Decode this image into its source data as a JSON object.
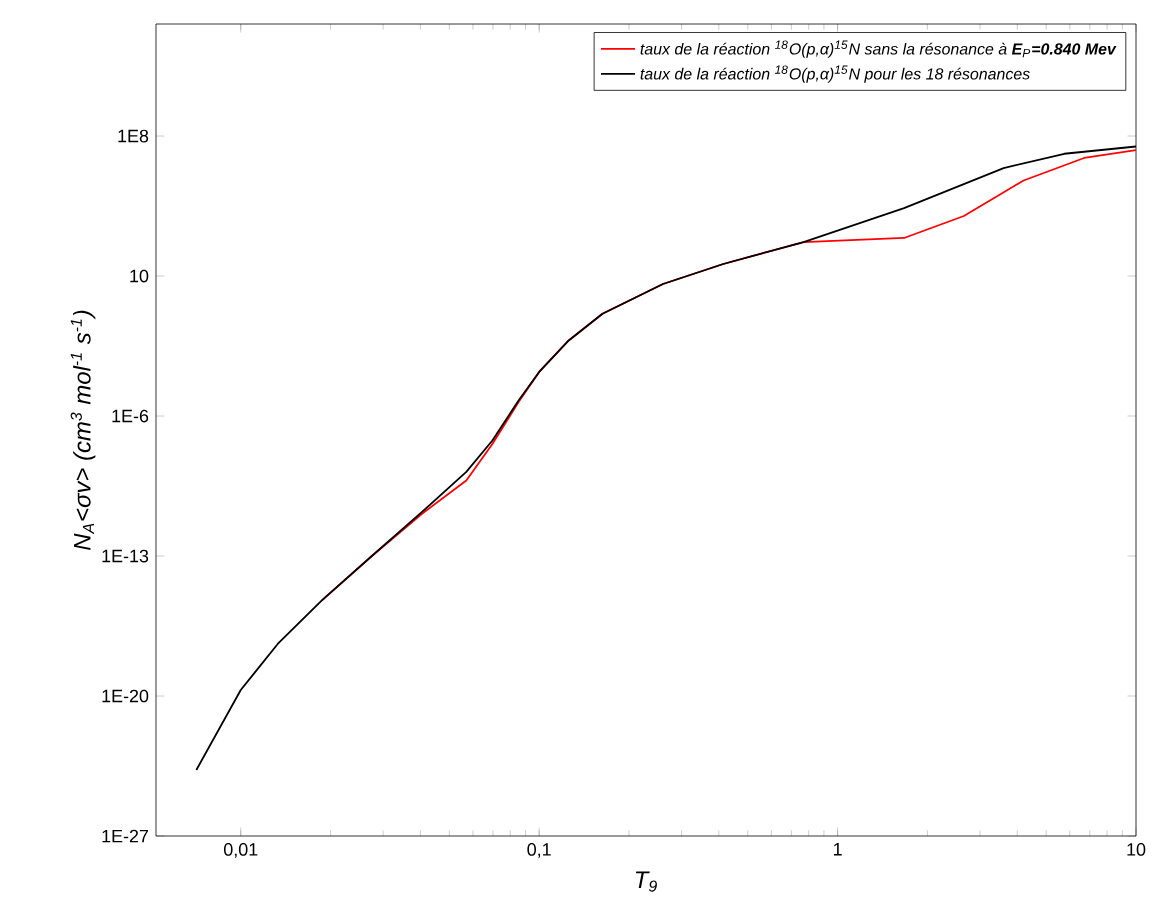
{
  "chart_data": {
    "type": "line",
    "xlabel": "T$_{9}$",
    "ylabel": "N$_{A}$<σv> (cm$^{3}$ mol$^{-1}$ s$^{-1}$)",
    "log": "xy",
    "grid": false,
    "legend": "top right",
    "marker": "none",
    "line_style": "solid",
    "xlim": [
      0.0052,
      10
    ],
    "ylim": [
      1e-27,
      40000000000000.0
    ],
    "xticks": [
      {
        "value": 0.01,
        "label": "0,01"
      },
      {
        "value": 0.1,
        "label": "0,1"
      },
      1,
      10
    ],
    "yticks": [
      {
        "value": 1e-27,
        "label": "1E-27"
      },
      {
        "value": 1e-20,
        "label": "1E-20"
      },
      {
        "value": 1e-13,
        "label": "1E-13"
      },
      {
        "value": 1e-06,
        "label": "1E-6"
      },
      10,
      {
        "value": 100000000.0,
        "label": "1E8"
      }
    ],
    "series": [
      {
        "name": "taux de la réaction $^{18}$O(p,α)$^{15}$N sans la résonance à **E**$_{P}$**=0.840 Mev**",
        "color": "#ff0000",
        "x": [
          0.0187,
          0.0275,
          0.0405,
          0.057,
          0.0697,
          0.0853,
          0.1,
          0.1256,
          0.163,
          0.26,
          0.414,
          0.769,
          1.67,
          2.65,
          4.2,
          6.7,
          10
        ],
        "values": [
          6e-16,
          1e-13,
          1.3e-11,
          6e-10,
          4e-08,
          5e-06,
          0.00016,
          0.006,
          0.13,
          4,
          40,
          500,
          800,
          10000.0,
          600000.0,
          8000000.0,
          20000000.0
        ]
      },
      {
        "name": "taux de la réaction $^{18}$O(p,α)$^{15}$N pour les 18 résonances",
        "color": "#000000",
        "x": [
          0.0071,
          0.01,
          0.0133,
          0.0187,
          0.0275,
          0.0405,
          0.057,
          0.0697,
          0.0853,
          0.1,
          0.1256,
          0.163,
          0.26,
          0.414,
          0.769,
          1.67,
          3.6,
          5.75,
          10
        ],
        "values": [
          2e-24,
          2e-20,
          4e-18,
          6e-16,
          1e-13,
          1.6e-11,
          1.6e-09,
          6e-08,
          6e-06,
          0.00016,
          0.006,
          0.13,
          4,
          40,
          500,
          25000.0,
          2500000.0,
          13000000.0,
          30000000.0
        ]
      }
    ]
  }
}
